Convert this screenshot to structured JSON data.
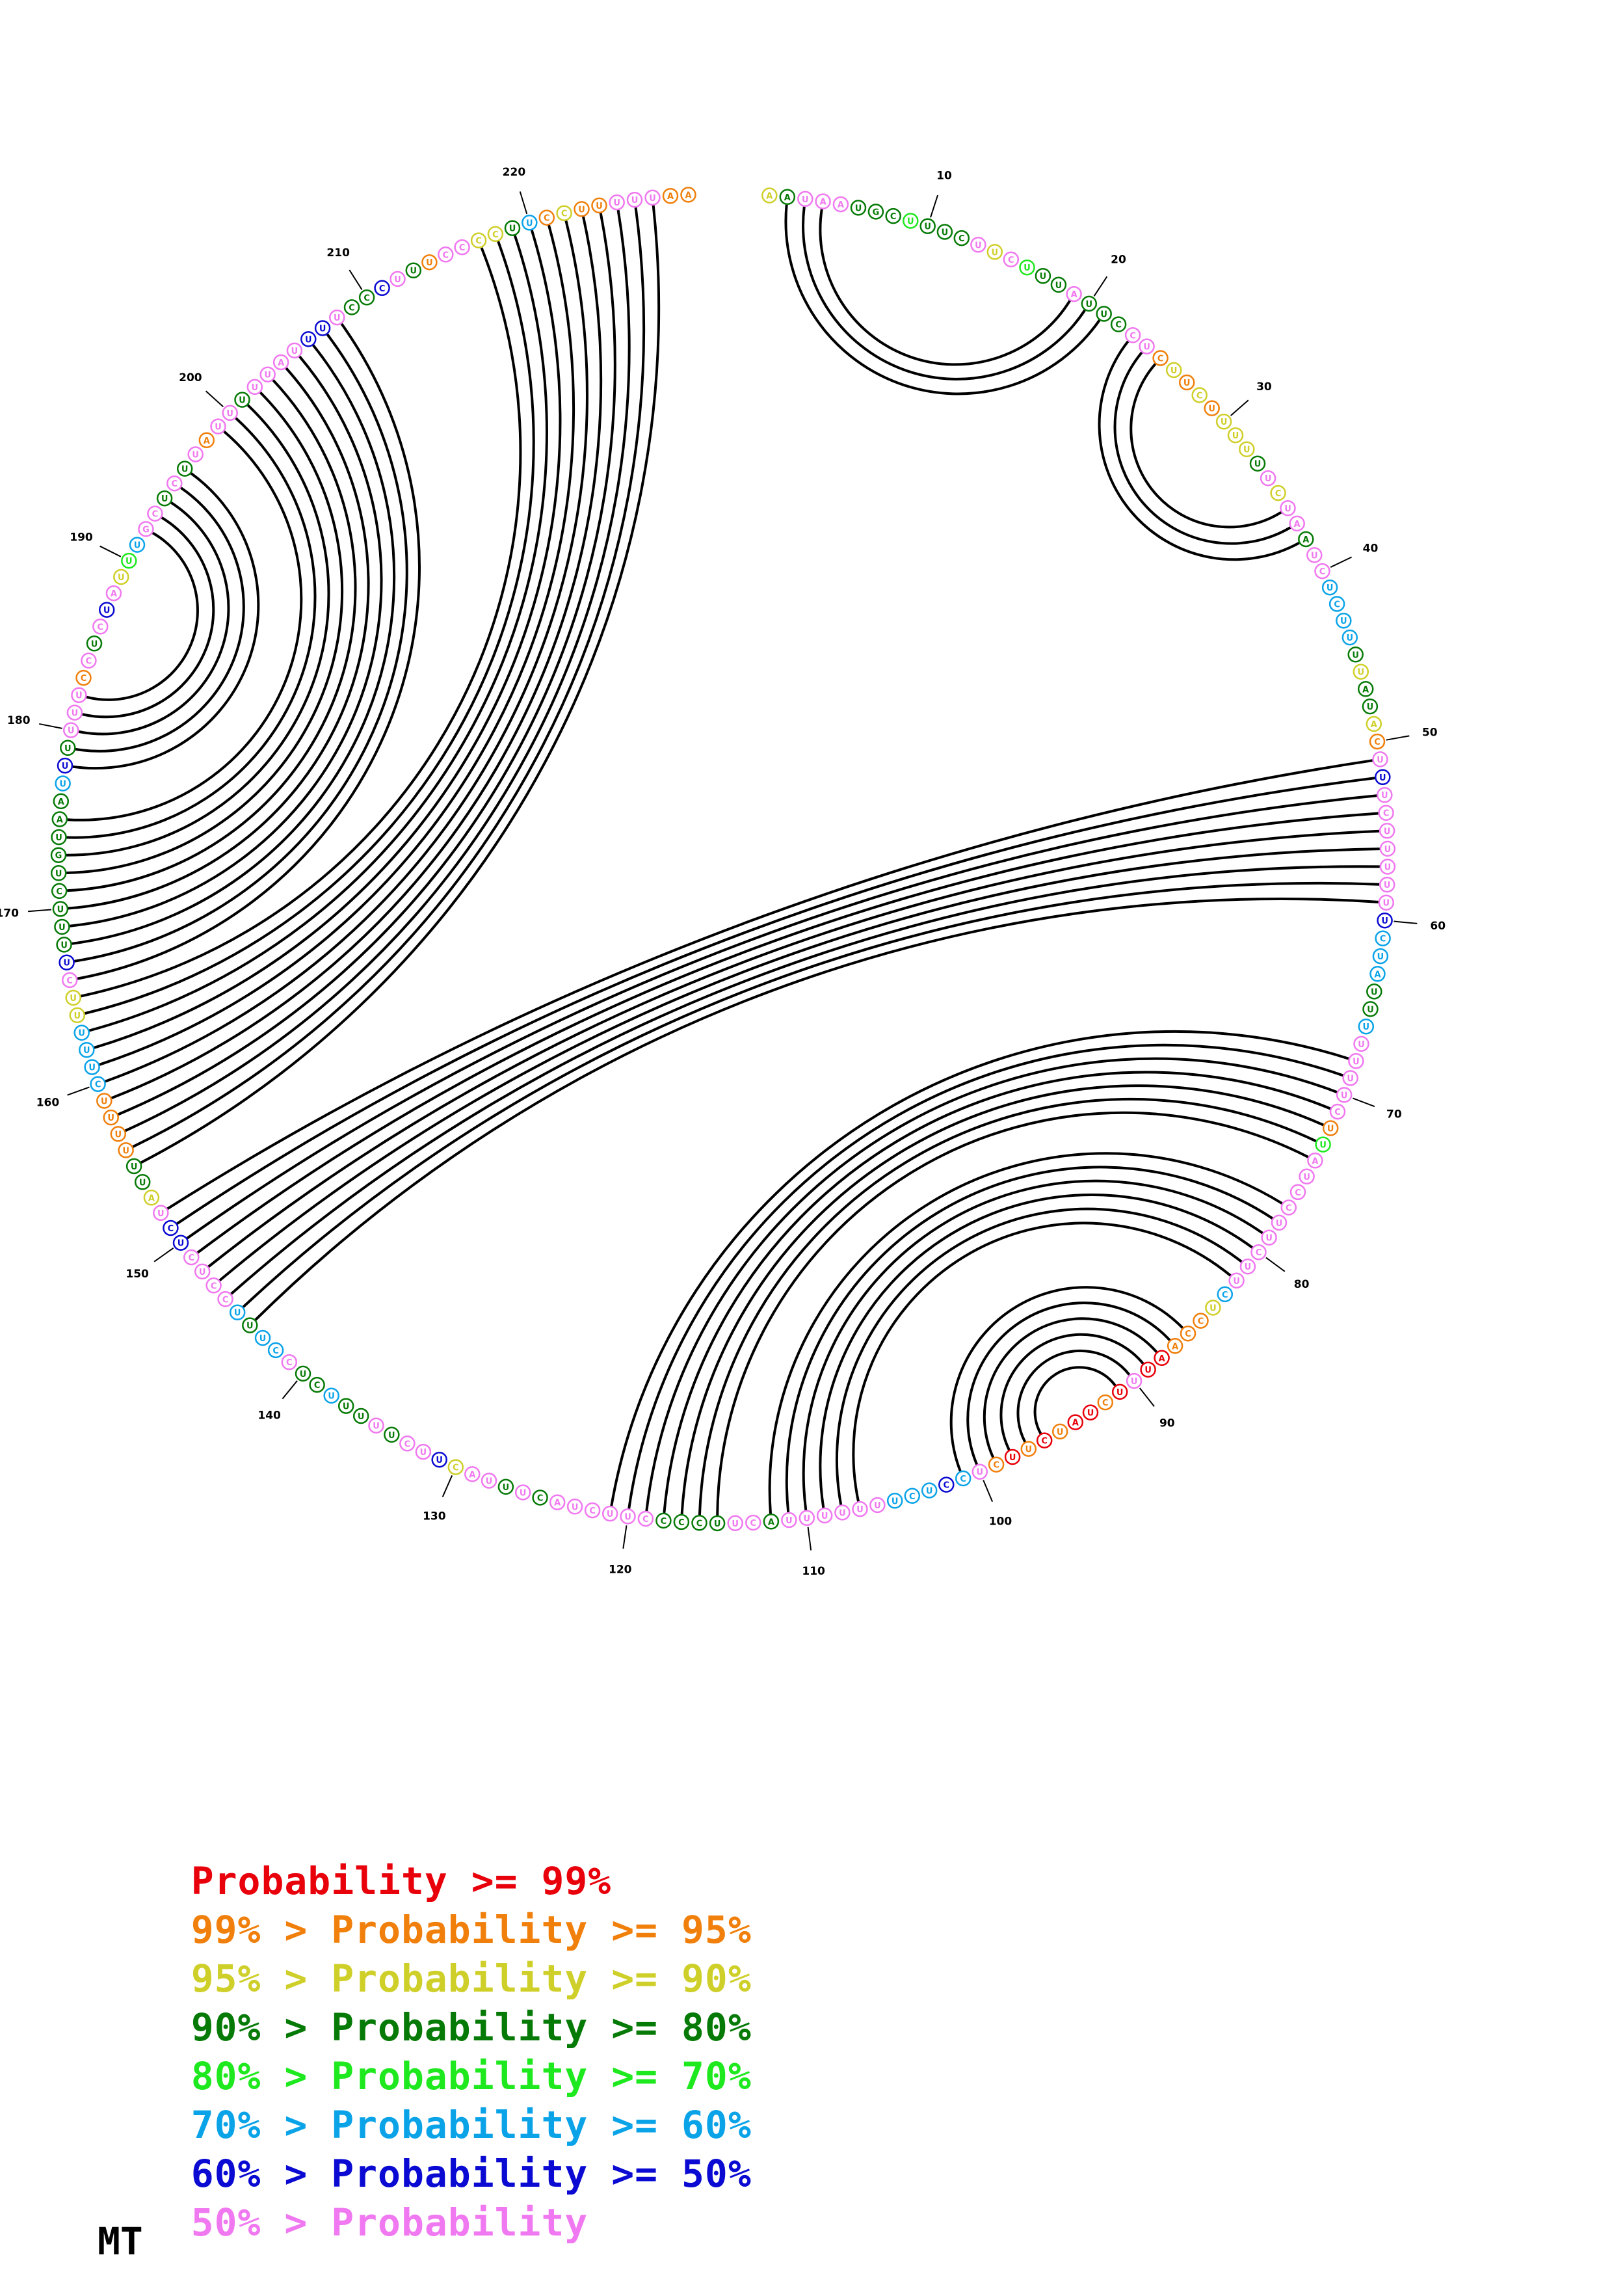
{
  "sequence": "AAUAAUGCUUUCUUCUUUAUUCCUCUUCUUUUUUCUAAUCUCUUUUAUACUUUCUUUUUUCUAUUUUUUUCUUAUCCUUCUUCUCCAAUUUCUAUCUUCUCCUCUUUUUUUACUUCCCCUUCUACUUUACUUCUUUUUCUCCUUUCCUCUCUAUUUUUUCUUUUUCUUUUCUGUAAUUUUUUCCUCUAUUUGCUCUUAUUUUUAUUUUCCCUUUCCCCUUCCUUUUUAA",
  "tick_labels": [
    "10",
    "20",
    "30",
    "40",
    "50",
    "60",
    "70",
    "80",
    "90",
    "100",
    "110",
    "120",
    "130",
    "140",
    "150",
    "160",
    "170",
    "180",
    "190",
    "200",
    "210",
    "220"
  ],
  "colors": {
    "p99": "#e8000b",
    "p95": "#f07f0b",
    "p90": "#cfcf2a",
    "p80": "#067a06",
    "p70": "#1ee81e",
    "p60": "#0aa3e8",
    "p50": "#0a0ad2",
    "p0": "#f078f0"
  },
  "base_probability_class": [
    "p90",
    "p80",
    "p0",
    "p0",
    "p0",
    "p80",
    "p80",
    "p80",
    "p70",
    "p80",
    "p80",
    "p80",
    "p0",
    "p90",
    "p0",
    "p70",
    "p80",
    "p80",
    "p0",
    "p80",
    "p80",
    "p80",
    "p0",
    "p0",
    "p95",
    "p90",
    "p95",
    "p90",
    "p95",
    "p90",
    "p90",
    "p90",
    "p80",
    "p0",
    "p90",
    "p0",
    "p0",
    "p80",
    "p0",
    "p0",
    "p60",
    "p60",
    "p60",
    "p60",
    "p80",
    "p90",
    "p80",
    "p80",
    "p90",
    "p95",
    "p0",
    "p50",
    "p0",
    "p0",
    "p0",
    "p0",
    "p0",
    "p0",
    "p0",
    "p50",
    "p60",
    "p60",
    "p60",
    "p80",
    "p80",
    "p60",
    "p0",
    "p0",
    "p0",
    "p0",
    "p0",
    "p95",
    "p70",
    "p0",
    "p0",
    "p0",
    "p0",
    "p0",
    "p0",
    "p0",
    "p0",
    "p0",
    "p60",
    "p90",
    "p95",
    "p95",
    "p95",
    "p99",
    "p99",
    "p0",
    "p99",
    "p95",
    "p99",
    "p99",
    "p95",
    "p99",
    "p95",
    "p99",
    "p95",
    "p0",
    "p60",
    "p50",
    "p60",
    "p60",
    "p60",
    "p0",
    "p0",
    "p0",
    "p0",
    "p0",
    "p0",
    "p80",
    "p0",
    "p0",
    "p80",
    "p80",
    "p80",
    "p80",
    "p0",
    "p0",
    "p0",
    "p0",
    "p0",
    "p0",
    "p80",
    "p0",
    "p80",
    "p0",
    "p0",
    "p90",
    "p50",
    "p0",
    "p0",
    "p80",
    "p0",
    "p80",
    "p80",
    "p60",
    "p80",
    "p80",
    "p0",
    "p60",
    "p60",
    "p80",
    "p60",
    "p0",
    "p0",
    "p0",
    "p0",
    "p50",
    "p50",
    "p0",
    "p90",
    "p80",
    "p80",
    "p95",
    "p95",
    "p95",
    "p95",
    "p60",
    "p60",
    "p60",
    "p60",
    "p90",
    "p90",
    "p0",
    "p50",
    "p80",
    "p80",
    "p80",
    "p80",
    "p80",
    "p80",
    "p80",
    "p80",
    "p80",
    "p60",
    "p50",
    "p80",
    "p0",
    "p0",
    "p0",
    "p95",
    "p0",
    "p80",
    "p0",
    "p50",
    "p0",
    "p90",
    "p70",
    "p60",
    "p0",
    "p0",
    "p80",
    "p0",
    "p80",
    "p0",
    "p95",
    "p0",
    "p0",
    "p80",
    "p0",
    "p0",
    "p0",
    "p0",
    "p50",
    "p50",
    "p0",
    "p80",
    "p80",
    "p50",
    "p0",
    "p80",
    "p95",
    "p0",
    "p0",
    "p90",
    "p90",
    "p80",
    "p60",
    "p95",
    "p90",
    "p95",
    "p95",
    "p0",
    "p0",
    "p0",
    "p95",
    "p95",
    "p0",
    "p95",
    "p80",
    "p99"
  ],
  "base_pairs": [
    [
      2,
      21
    ],
    [
      3,
      20
    ],
    [
      4,
      19
    ],
    [
      23,
      38
    ],
    [
      24,
      37
    ],
    [
      25,
      36
    ],
    [
      51,
      152
    ],
    [
      52,
      151
    ],
    [
      53,
      150
    ],
    [
      54,
      149
    ],
    [
      55,
      148
    ],
    [
      56,
      147
    ],
    [
      57,
      146
    ],
    [
      58,
      145
    ],
    [
      59,
      144
    ],
    [
      68,
      121
    ],
    [
      69,
      120
    ],
    [
      70,
      119
    ],
    [
      71,
      118
    ],
    [
      72,
      117
    ],
    [
      73,
      116
    ],
    [
      74,
      115
    ],
    [
      77,
      112
    ],
    [
      78,
      111
    ],
    [
      79,
      110
    ],
    [
      80,
      109
    ],
    [
      81,
      108
    ],
    [
      82,
      107
    ],
    [
      86,
      101
    ],
    [
      87,
      100
    ],
    [
      88,
      99
    ],
    [
      89,
      98
    ],
    [
      90,
      97
    ],
    [
      91,
      96
    ],
    [
      155,
      227
    ],
    [
      156,
      226
    ],
    [
      157,
      225
    ],
    [
      158,
      224
    ],
    [
      159,
      223
    ],
    [
      160,
      222
    ],
    [
      161,
      221
    ],
    [
      162,
      220
    ],
    [
      163,
      219
    ],
    [
      164,
      218
    ],
    [
      165,
      217
    ],
    [
      166,
      208
    ],
    [
      167,
      207
    ],
    [
      168,
      206
    ],
    [
      169,
      205
    ],
    [
      170,
      204
    ],
    [
      171,
      203
    ],
    [
      172,
      202
    ],
    [
      173,
      201
    ],
    [
      174,
      200
    ],
    [
      175,
      199
    ],
    [
      178,
      196
    ],
    [
      179,
      195
    ],
    [
      180,
      194
    ],
    [
      181,
      193
    ],
    [
      182,
      192
    ]
  ],
  "legend": [
    {
      "prefix": "",
      "text": "Probability >= 99%",
      "color_key": "p99"
    },
    {
      "prefix": "99% > ",
      "text": "Probability >= 95%",
      "color_key": "p95"
    },
    {
      "prefix": "95% > ",
      "text": "Probability >= 90%",
      "color_key": "p90"
    },
    {
      "prefix": "90% > ",
      "text": "Probability >= 80%",
      "color_key": "p80"
    },
    {
      "prefix": "80% > ",
      "text": "Probability >= 70%",
      "color_key": "p70"
    },
    {
      "prefix": "70% > ",
      "text": "Probability >= 60%",
      "color_key": "p60"
    },
    {
      "prefix": "60% > ",
      "text": "Probability >= 50%",
      "color_key": "p50"
    },
    {
      "prefix": "50% > ",
      "text": "Probability",
      "color_key": "p0"
    }
  ],
  "caption": "MT"
}
